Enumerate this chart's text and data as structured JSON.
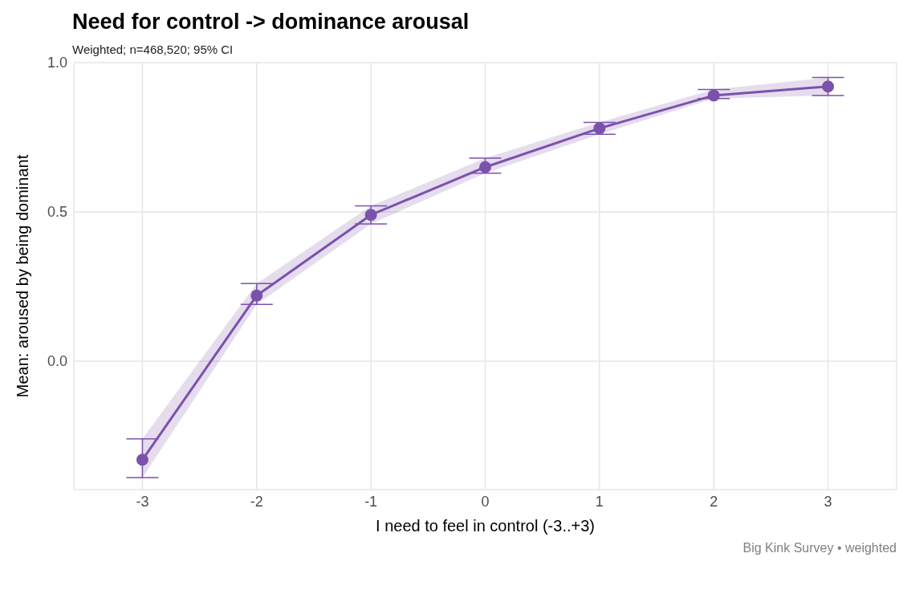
{
  "chart_data": {
    "type": "line",
    "title": "Need for control -> dominance arousal",
    "subtitle": "Weighted; n=468,520; 95% CI",
    "xlabel": "I need to feel in control (-3..+3)",
    "ylabel": "Mean: aroused by being dominant",
    "annotations": [
      "Big Kink Survey • weighted"
    ],
    "x": [
      -3,
      -2,
      -1,
      0,
      1,
      2,
      3
    ],
    "series": [
      {
        "color": "#7b52ab",
        "values": [
          -0.33,
          0.22,
          0.49,
          0.65,
          0.78,
          0.89,
          0.92
        ],
        "errors": [
          [
            -0.39,
            -0.26
          ],
          [
            0.19,
            0.26
          ],
          [
            0.46,
            0.52
          ],
          [
            0.63,
            0.68
          ],
          [
            0.76,
            0.8
          ],
          [
            0.88,
            0.91
          ],
          [
            0.89,
            0.95
          ]
        ],
        "lower": [
          -0.39,
          0.19,
          0.46,
          0.63,
          0.76,
          0.88,
          0.89
        ],
        "upper": [
          -0.26,
          0.26,
          0.52,
          0.68,
          0.8,
          0.91,
          0.95
        ]
      }
    ],
    "xlim": [
      -3.6,
      3.6
    ],
    "ylim": [
      -0.43,
      1.0
    ],
    "xticks": [
      -3,
      -2,
      -1,
      0,
      1,
      2,
      3
    ],
    "yticks": [
      {
        "value": 0,
        "label": "0.0"
      },
      {
        "value": 0.5,
        "label": "0.5"
      },
      {
        "value": 1,
        "label": "1.0"
      }
    ],
    "grid": true,
    "marker": "circle",
    "line_style": "solid"
  }
}
